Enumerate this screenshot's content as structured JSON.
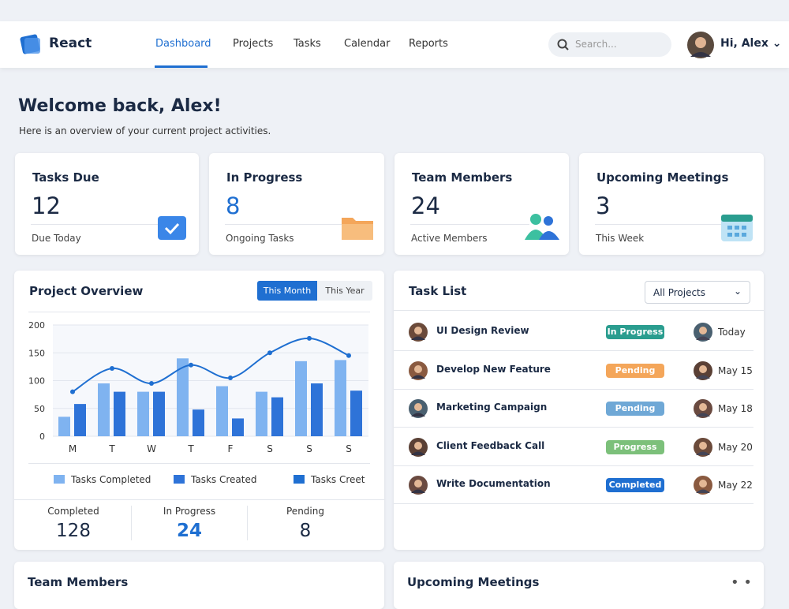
{
  "nav": {
    "brand": "React",
    "links": [
      "Dashboard",
      "Projects",
      "Tasks",
      "Calendar",
      "Reports"
    ],
    "search": "Search...",
    "user": "Hi, Alex"
  },
  "welcome": {
    "title": "Welcome back, Alex!",
    "subtitle": "Here is an overview of your current project activities."
  },
  "stats": [
    {
      "title": "Tasks Due",
      "value": 12,
      "label": "Due Today"
    },
    {
      "title": "In Progress",
      "value": 8,
      "label": "Ongoing Tasks"
    },
    {
      "title": "Team Members",
      "value": 24,
      "label": "Active Members"
    },
    {
      "title": "Upcoming Meetings",
      "value": 3,
      "label": "This Week"
    }
  ],
  "overview": {
    "title": "Project Overview",
    "toggles": [
      "This Month",
      "This Year"
    ],
    "summary": [
      {
        "label": "Completed",
        "value": 128
      },
      {
        "label": "In Progress",
        "value": 24
      },
      {
        "label": "Pending",
        "value": 8
      }
    ]
  },
  "chart_data": {
    "type": "bar",
    "categories": [
      "M",
      "T",
      "W",
      "T",
      "F",
      "S",
      "S",
      "S"
    ],
    "series": [
      {
        "name": "Tasks Completed",
        "color": "#7fb3f0",
        "values": [
          35,
          95,
          80,
          140,
          90,
          80,
          135,
          137
        ]
      },
      {
        "name": "Tasks Created",
        "color": "#2e73d8",
        "values": [
          58,
          80,
          80,
          48,
          32,
          70,
          95,
          82
        ]
      },
      {
        "name": "Tasks Creet",
        "type": "line",
        "color": "#1f6fd1",
        "values": [
          80,
          122,
          95,
          128,
          105,
          150,
          176,
          145
        ]
      }
    ],
    "ylim": [
      0,
      200
    ],
    "yticks": [
      0,
      50,
      100,
      150,
      200
    ],
    "grid": true
  },
  "tasks": {
    "title": "Task List",
    "filter": "All Projects",
    "rows": [
      {
        "name": "UI Design Review",
        "status": "In Progress",
        "color": "#2a9d8f",
        "date": "Today"
      },
      {
        "name": "Develop New Feature",
        "status": "Pending",
        "color": "#f4a65a",
        "date": "May 15"
      },
      {
        "name": "Marketing Campaign",
        "status": "Pending",
        "color": "#6fa8d6",
        "date": "May 18"
      },
      {
        "name": "Client Feedback Call",
        "status": "Progress",
        "color": "#7cc07a",
        "date": "May 20"
      },
      {
        "name": "Write Documentation",
        "status": "Completed",
        "color": "#1f6fd1",
        "date": "May 22"
      }
    ]
  },
  "bottom": [
    "Team Members",
    "Upcoming Meetings"
  ]
}
